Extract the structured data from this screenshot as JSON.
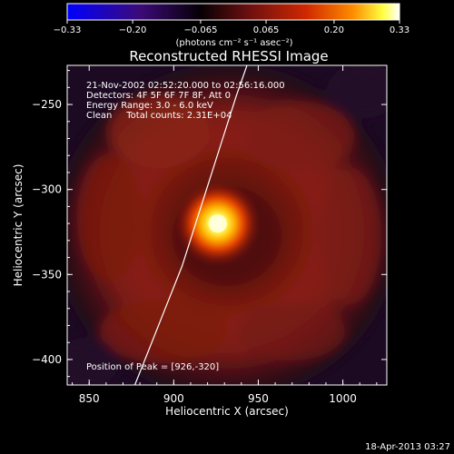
{
  "chart_data": {
    "type": "heatmap",
    "title": "Reconstructed RHESSI Image",
    "xlabel": "Heliocentric X (arcsec)",
    "ylabel": "Heliocentric Y (arcsec)",
    "xlim": [
      837,
      1026
    ],
    "ylim": [
      -415,
      -227
    ],
    "x_ticks": [
      850,
      900,
      950,
      1000
    ],
    "x_tick_labels": [
      "850",
      "900",
      "950",
      "1000"
    ],
    "y_ticks": [
      -250,
      -300,
      -350,
      -400
    ],
    "y_tick_labels": [
      "−250",
      "−300",
      "−350",
      "−400"
    ],
    "colorbar": {
      "range": [
        -0.33,
        0.33
      ],
      "ticks": [
        -0.33,
        -0.2,
        -0.065,
        0.065,
        0.2,
        0.33
      ],
      "tick_labels": [
        "−0.33",
        "−0.20",
        "−0.065",
        "0.065",
        "0.20",
        "0.33"
      ],
      "unit_label": "(photons cm⁻² s⁻¹ asec⁻²)",
      "colormap": [
        "#0000ff",
        "#3a0a7a",
        "#000000",
        "#7a1010",
        "#d02a00",
        "#ff7a00",
        "#ffff40",
        "#ffffff"
      ]
    },
    "annotations": [
      "21-Nov-2002 02:52:20.000 to 02:56:16.000",
      "Detectors: 4F 5F 6F 7F 8F, Att 0",
      "Energy Range: 3.0 - 6.0 keV",
      "Clean     Total counts: 2.31E+04"
    ],
    "peak_label": "Position of Peak = [926,-320]",
    "peak": [
      926,
      -320
    ],
    "limb_curve": {
      "x": [
        877,
        885,
        895,
        905,
        913,
        921,
        929,
        937,
        944,
        951,
        958
      ],
      "y": [
        -415,
        -395,
        -370,
        -345,
        -320,
        -295,
        -270,
        -245,
        -225,
        -210,
        -195
      ]
    }
  },
  "timestamp": "18-Apr-2013 03:27"
}
